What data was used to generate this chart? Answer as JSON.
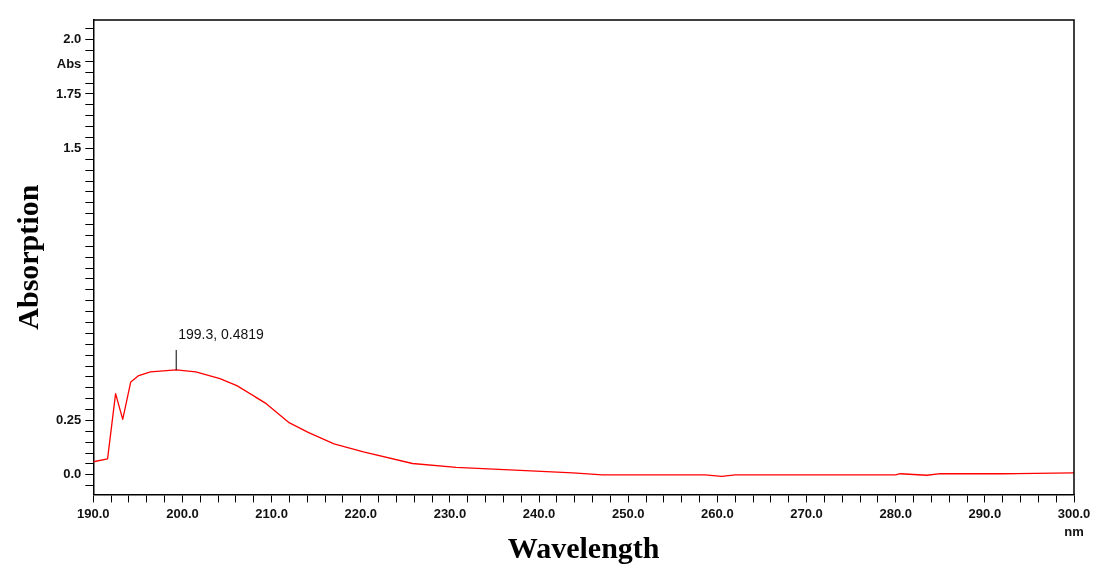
{
  "chart_data": {
    "type": "line",
    "xlabel": "Wavelength",
    "ylabel": "Absorption",
    "annotations": [
      "Abs",
      "nm",
      {
        "text": "199.3, 0.4819",
        "x": 199.3,
        "y": 0.4819
      }
    ],
    "series": [
      {
        "color": "#ff0000",
        "x": [
          190,
          191.6,
          192.5,
          193.3,
          194.2,
          195.1,
          196.4,
          199.3,
          201.5,
          204.2,
          206.1,
          209.4,
          211.9,
          214.1,
          217,
          220.3,
          225.8,
          230.7,
          236.7,
          243.8,
          247.1,
          258.6,
          260.5,
          262,
          280,
          280.5,
          283.5,
          285,
          292,
          300
        ],
        "values": [
          0.06,
          0.073,
          0.373,
          0.255,
          0.427,
          0.456,
          0.473,
          0.4819,
          0.473,
          0.442,
          0.41,
          0.327,
          0.241,
          0.195,
          0.142,
          0.105,
          0.052,
          0.034,
          0.023,
          0.009,
          0,
          0,
          -0.007,
          0,
          0,
          0.005,
          -0.002,
          0.005,
          0.005,
          0.009
        ]
      }
    ],
    "xlim": [
      190,
      300
    ],
    "xticks": [
      {
        "value": 190,
        "label": "190.0"
      },
      {
        "value": 192,
        "label": null
      },
      {
        "value": 194,
        "label": null
      },
      {
        "value": 196,
        "label": null
      },
      {
        "value": 198,
        "label": null
      },
      {
        "value": 200,
        "label": "200.0"
      },
      {
        "value": 202,
        "label": null
      },
      {
        "value": 204,
        "label": null
      },
      {
        "value": 206,
        "label": null
      },
      {
        "value": 208,
        "label": null
      },
      {
        "value": 210,
        "label": "210.0"
      },
      {
        "value": 212,
        "label": null
      },
      {
        "value": 214,
        "label": null
      },
      {
        "value": 216,
        "label": null
      },
      {
        "value": 218,
        "label": null
      },
      {
        "value": 220,
        "label": "220.0"
      },
      {
        "value": 222,
        "label": null
      },
      {
        "value": 224,
        "label": null
      },
      {
        "value": 226,
        "label": null
      },
      {
        "value": 228,
        "label": null
      },
      {
        "value": 230,
        "label": "230.0"
      },
      {
        "value": 232,
        "label": null
      },
      {
        "value": 234,
        "label": null
      },
      {
        "value": 236,
        "label": null
      },
      {
        "value": 238,
        "label": null
      },
      {
        "value": 240,
        "label": "240.0"
      },
      {
        "value": 242,
        "label": null
      },
      {
        "value": 244,
        "label": null
      },
      {
        "value": 246,
        "label": null
      },
      {
        "value": 248,
        "label": null
      },
      {
        "value": 250,
        "label": "250.0"
      },
      {
        "value": 252,
        "label": null
      },
      {
        "value": 254,
        "label": null
      },
      {
        "value": 256,
        "label": null
      },
      {
        "value": 258,
        "label": null
      },
      {
        "value": 260,
        "label": "260.0"
      },
      {
        "value": 262,
        "label": null
      },
      {
        "value": 264,
        "label": null
      },
      {
        "value": 266,
        "label": null
      },
      {
        "value": 268,
        "label": null
      },
      {
        "value": 270,
        "label": "270.0"
      },
      {
        "value": 272,
        "label": null
      },
      {
        "value": 274,
        "label": null
      },
      {
        "value": 276,
        "label": null
      },
      {
        "value": 278,
        "label": null
      },
      {
        "value": 280,
        "label": "280.0"
      },
      {
        "value": 282,
        "label": null
      },
      {
        "value": 284,
        "label": null
      },
      {
        "value": 286,
        "label": null
      },
      {
        "value": 288,
        "label": null
      },
      {
        "value": 290,
        "label": "290.0"
      },
      {
        "value": 292,
        "label": null
      },
      {
        "value": 294,
        "label": null
      },
      {
        "value": 296,
        "label": null
      },
      {
        "value": 298,
        "label": null
      },
      {
        "value": 300,
        "label": "300.0"
      }
    ],
    "ylim": [
      -0.09,
      2.09
    ],
    "yticks": [
      {
        "value": -0.05,
        "label": null
      },
      {
        "value": 0,
        "label": "0.0"
      },
      {
        "value": 0.05,
        "label": null
      },
      {
        "value": 0.1,
        "label": null
      },
      {
        "value": 0.15,
        "label": null
      },
      {
        "value": 0.2,
        "label": null
      },
      0.25,
      {
        "value": 0.3,
        "label": null
      },
      {
        "value": 0.35,
        "label": null
      },
      {
        "value": 0.4,
        "label": null
      },
      {
        "value": 0.45,
        "label": null
      },
      {
        "value": 0.5,
        "label": null
      },
      {
        "value": 0.55,
        "label": null
      },
      {
        "value": 0.6,
        "label": null
      },
      {
        "value": 0.65,
        "label": null
      },
      {
        "value": 0.7,
        "label": null
      },
      {
        "value": 0.75,
        "label": null
      },
      {
        "value": 0.8,
        "label": null
      },
      {
        "value": 0.85,
        "label": null
      },
      {
        "value": 0.9,
        "label": null
      },
      {
        "value": 0.95,
        "label": null
      },
      {
        "value": 1,
        "label": null
      },
      {
        "value": 1.05,
        "label": null
      },
      {
        "value": 1.1,
        "label": null
      },
      {
        "value": 1.15,
        "label": null
      },
      {
        "value": 1.2,
        "label": null
      },
      {
        "value": 1.25,
        "label": null
      },
      {
        "value": 1.3,
        "label": null
      },
      {
        "value": 1.35,
        "label": null
      },
      {
        "value": 1.4,
        "label": null
      },
      {
        "value": 1.45,
        "label": null
      },
      1.5,
      {
        "value": 1.55,
        "label": null
      },
      {
        "value": 1.6,
        "label": null
      },
      {
        "value": 1.65,
        "label": null
      },
      {
        "value": 1.7,
        "label": null
      },
      1.75,
      {
        "value": 1.8,
        "label": null
      },
      {
        "value": 1.85,
        "label": null
      },
      {
        "value": 1.9,
        "label": null
      },
      {
        "value": 1.95,
        "label": null
      },
      {
        "value": 2,
        "label": "2.0"
      },
      {
        "value": 2.05,
        "label": null
      }
    ],
    "grid": false,
    "legend": false,
    "marker": "none",
    "line_style": "solid"
  }
}
